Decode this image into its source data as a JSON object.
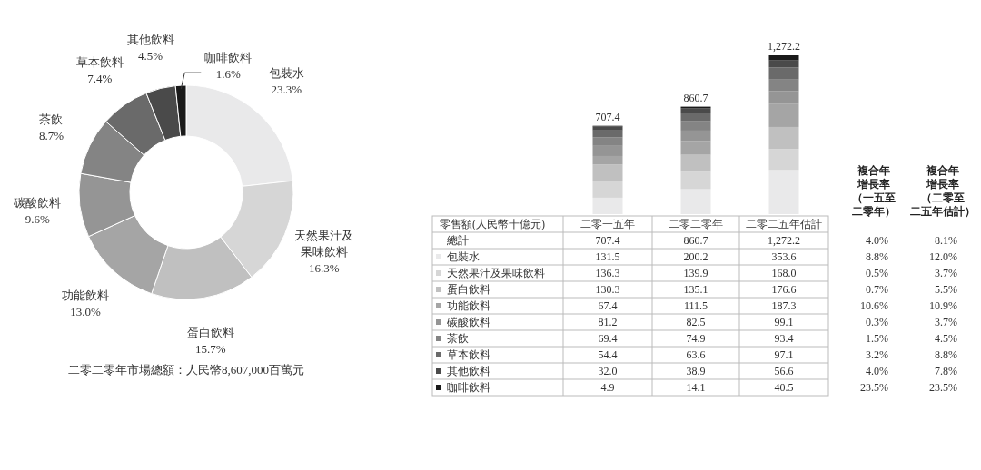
{
  "chart_data": [
    {
      "type": "donut",
      "categories": [
        "包裝水",
        "天然果汁及果味飲料",
        "蛋白飲料",
        "功能飲料",
        "碳酸飲料",
        "茶飲",
        "草本飲料",
        "其他飲料",
        "咖啡飲料"
      ],
      "values": [
        23.3,
        16.3,
        15.7,
        13.0,
        9.6,
        8.7,
        7.4,
        4.5,
        1.6
      ],
      "colors": [
        "#e9e9ea",
        "#d6d6d6",
        "#c0c0c0",
        "#a5a5a5",
        "#959595",
        "#848484",
        "#6a6a6a",
        "#4a4a4a",
        "#1a1a1a"
      ],
      "value_labels": [
        "23.3%",
        "16.3%",
        "15.7%",
        "13.0%",
        "9.6%",
        "8.7%",
        "7.4%",
        "4.5%",
        "1.6%"
      ],
      "annotations": [
        "二零二零年市場總額：人民幣8,607,000百萬元"
      ]
    },
    {
      "type": "bar",
      "stacked": true,
      "legend": "bottom",
      "ylabel": "零售額(人民幣十億元)",
      "categories": [
        "二零一五年",
        "二零二零年",
        "二零二五年估計"
      ],
      "totals": [
        "707.4",
        "860.7",
        "1,272.2"
      ],
      "legend_title": "總計",
      "series": [
        {
          "name": "包裝水",
          "color": "#e9e9ea",
          "values": [
            131.5,
            200.2,
            353.6
          ],
          "value_labels": [
            "131.5",
            "200.2",
            "353.6"
          ]
        },
        {
          "name": "天然果汁及果味飲料",
          "color": "#d6d6d6",
          "values": [
            136.3,
            139.9,
            168.0
          ],
          "value_labels": [
            "136.3",
            "139.9",
            "168.0"
          ]
        },
        {
          "name": "蛋白飲料",
          "color": "#c0c0c0",
          "values": [
            130.3,
            135.1,
            176.6
          ],
          "value_labels": [
            "130.3",
            "135.1",
            "176.6"
          ]
        },
        {
          "name": "功能飲料",
          "color": "#a5a5a5",
          "values": [
            67.4,
            111.5,
            187.3
          ],
          "value_labels": [
            "67.4",
            "111.5",
            "187.3"
          ]
        },
        {
          "name": "碳酸飲料",
          "color": "#959595",
          "values": [
            81.2,
            82.5,
            99.1
          ],
          "value_labels": [
            "81.2",
            "82.5",
            "99.1"
          ]
        },
        {
          "name": "茶飲",
          "color": "#848484",
          "values": [
            69.4,
            74.9,
            93.4
          ],
          "value_labels": [
            "69.4",
            "74.9",
            "93.4"
          ]
        },
        {
          "name": "草本飲料",
          "color": "#6a6a6a",
          "values": [
            54.4,
            63.6,
            97.1
          ],
          "value_labels": [
            "54.4",
            "63.6",
            "97.1"
          ]
        },
        {
          "name": "其他飲料",
          "color": "#4a4a4a",
          "values": [
            32.0,
            38.9,
            56.6
          ],
          "value_labels": [
            "32.0",
            "38.9",
            "56.6"
          ]
        },
        {
          "name": "咖啡飲料",
          "color": "#1a1a1a",
          "values": [
            4.9,
            14.1,
            40.5
          ],
          "value_labels": [
            "4.9",
            "14.1",
            "40.5"
          ]
        }
      ]
    },
    {
      "type": "other",
      "title": "複合年增長率（一五至二零年）",
      "annotations": [
        "4.0%",
        "8.8%",
        "0.5%",
        "0.7%",
        "10.6%",
        "0.3%",
        "1.5%",
        "3.2%",
        "4.0%",
        "23.5%"
      ]
    },
    {
      "type": "other",
      "title": "複合年增長率（二零至二五年估計）",
      "annotations": [
        "8.1%",
        "12.0%",
        "3.7%",
        "5.5%",
        "10.9%",
        "3.7%",
        "4.5%",
        "8.8%",
        "7.8%",
        "23.5%"
      ]
    }
  ]
}
